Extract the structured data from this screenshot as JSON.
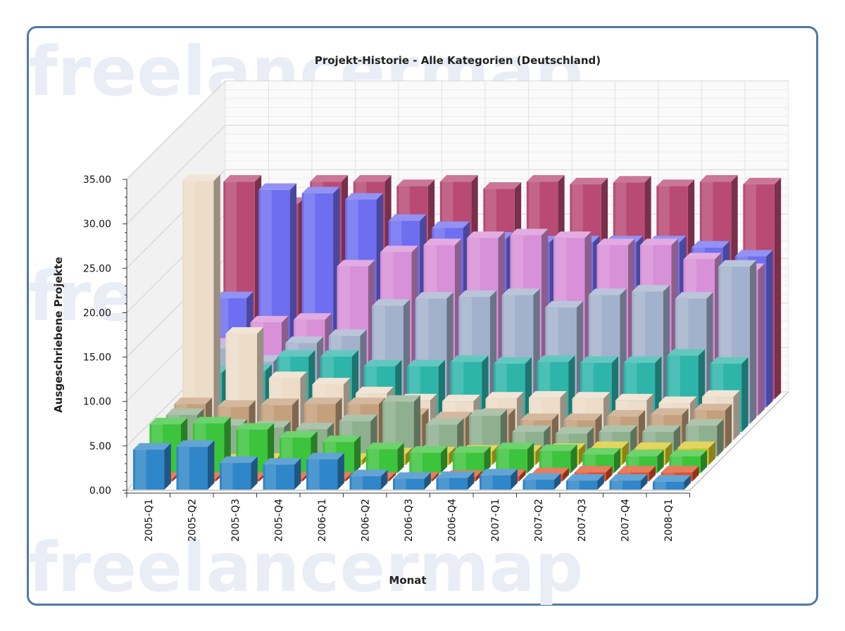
{
  "watermark": "freelancermap",
  "chart_data": {
    "type": "bar",
    "subtype": "3d-clustered-depth",
    "title": "Projekt-Historie - Alle Kategorien (Deutschland)",
    "xlabel": "Monat",
    "ylabel": "Ausgeschriebene Projekte",
    "ylim": [
      0,
      35
    ],
    "yticks": [
      "0.00",
      "5.00",
      "10.00",
      "15.00",
      "20.00",
      "25.00",
      "30.00",
      "35.00"
    ],
    "grid": true,
    "legend": "none",
    "categories": [
      "2005-Q1",
      "2005-Q2",
      "2005-Q3",
      "2005-Q4",
      "2006-Q1",
      "2006-Q2",
      "2006-Q3",
      "2006-Q4",
      "2007-Q1",
      "2007-Q2",
      "2007-Q3",
      "2007-Q4",
      "2008-Q1"
    ],
    "series": [
      {
        "color": "#2f86c8",
        "values": [
          4.5,
          4.8,
          3,
          2.8,
          3.4,
          1.5,
          1.2,
          1.3,
          1.6,
          1.1,
          1,
          1,
          0.9
        ]
      },
      {
        "color": "#e0502a",
        "values": [
          0.3,
          0.3,
          0.3,
          0.3,
          0.3,
          0.3,
          0.3,
          0.5,
          0.6,
          0.8,
          1,
          1,
          1
        ]
      },
      {
        "color": "#3cc43c",
        "values": [
          5.5,
          5.6,
          4.9,
          4,
          3.5,
          2.7,
          2.3,
          2.3,
          2.7,
          2.5,
          2.1,
          1.9,
          1.9
        ]
      },
      {
        "color": "#d8c82a",
        "values": [
          0.5,
          0.5,
          0.6,
          0.6,
          0.6,
          1.2,
          1.3,
          1.5,
          1.5,
          1.7,
          1.9,
          1.8,
          1.9
        ]
      },
      {
        "color": "#8fb08f",
        "values": [
          4.7,
          3.5,
          3.3,
          3.1,
          4,
          6.2,
          3.6,
          4.6,
          2.8,
          2.6,
          2.8,
          2.8,
          3.5
        ]
      },
      {
        "color": "#c4a07c",
        "values": [
          5,
          4.7,
          4.9,
          5,
          5,
          3.8,
          3.4,
          3.8,
          3.2,
          3.2,
          3.6,
          3.8,
          4.3
        ]
      },
      {
        "color": "#ecdcc8",
        "values": [
          29.2,
          12,
          7,
          6.3,
          5.3,
          4.5,
          4.4,
          4.7,
          4.8,
          4.7,
          4.5,
          4.2,
          4.9
        ]
      },
      {
        "color": "#2db5aa",
        "values": [
          6.7,
          6.9,
          8.5,
          8.5,
          7.4,
          7.4,
          7.9,
          7.7,
          7.9,
          7.8,
          7.8,
          8.6,
          7.7
        ]
      },
      {
        "color": "#a3b2cc",
        "values": [
          8.5,
          7,
          9.1,
          9.9,
          13.3,
          14.1,
          14.3,
          14.5,
          13.1,
          14.5,
          14.9,
          14.1,
          17.7
        ]
      },
      {
        "color": "#d890d8",
        "values": [
          8,
          10.5,
          10.8,
          16.8,
          18.4,
          19.2,
          20,
          20.3,
          20,
          19.2,
          19.2,
          17.6,
          16.4
        ]
      },
      {
        "color": "#6e6ef0",
        "values": [
          12.3,
          24.5,
          24.1,
          23.4,
          21,
          20.2,
          19,
          18.6,
          18.6,
          18.6,
          18.6,
          18,
          17
        ]
      },
      {
        "color": "#b84a74",
        "values": [
          24.5,
          22,
          24.5,
          24.5,
          24,
          24.5,
          23.7,
          24.5,
          24.2,
          24.4,
          24,
          24.5,
          24.2
        ]
      }
    ]
  }
}
